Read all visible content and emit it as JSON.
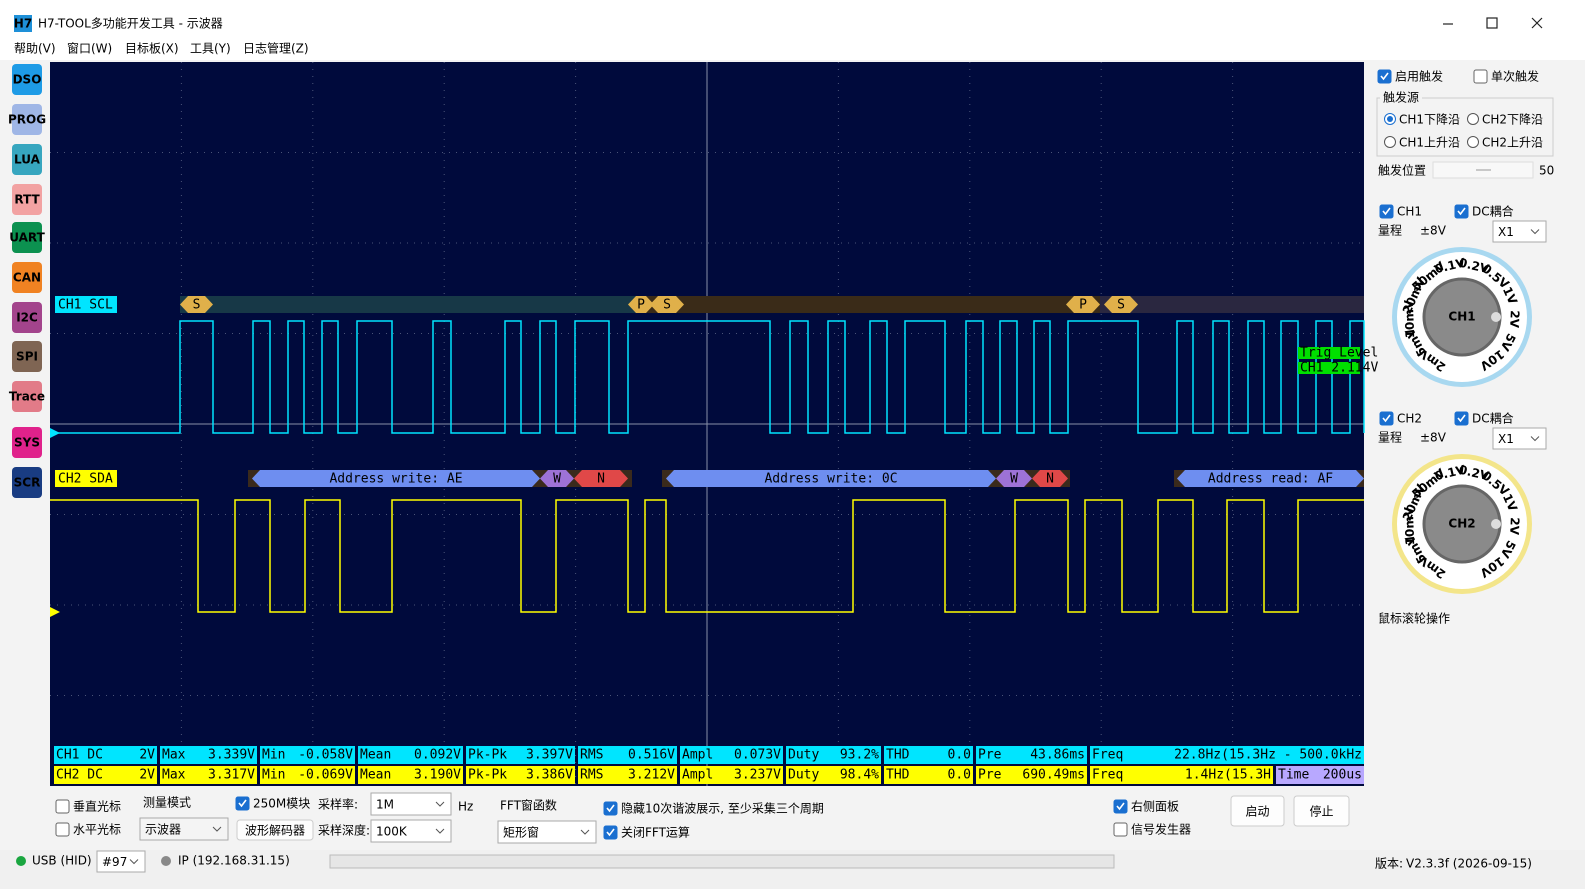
{
  "window": {
    "icon": "H7",
    "title": "H7-TOOL多功能开发工具 - 示波器"
  },
  "menu": [
    "帮助(V)",
    "窗口(W)",
    "目标板(X)",
    "工具(Y)",
    "日志管理(Z)"
  ],
  "sidebar": [
    "DSO",
    "PROG",
    "LUA",
    "RTT",
    "UART",
    "CAN",
    "I2C",
    "SPI",
    "Trace",
    "SYS",
    "SCR"
  ],
  "scope": {
    "ch1": {
      "label": "CH1 SCL",
      "decode": [
        "S",
        "P",
        "S",
        "P",
        "S"
      ]
    },
    "ch2": {
      "label": "CH2 SDA",
      "decode": [
        "Address write: AE",
        "W",
        "N",
        "Address write: 0C",
        "W",
        "N",
        "Address read: AF"
      ]
    },
    "trigger": {
      "title": "Trig Level",
      "value": "CH1 2.114V"
    },
    "measurements": [
      [
        [
          "CH1 DC",
          "2V"
        ],
        [
          "Max",
          "3.339V"
        ],
        [
          "Min",
          "-0.058V"
        ],
        [
          "Mean",
          "0.092V"
        ],
        [
          "Pk-Pk",
          "3.397V"
        ],
        [
          "RMS",
          "0.516V"
        ],
        [
          "Ampl",
          "0.073V"
        ],
        [
          "Duty",
          "93.2%"
        ],
        [
          "THD",
          "0.0"
        ],
        [
          "Pre",
          "43.86ms"
        ],
        [
          "Freq",
          "22.8Hz(15.3Hz - 500.0kHz"
        ]
      ],
      [
        [
          "CH2 DC",
          "2V"
        ],
        [
          "Max",
          "3.317V"
        ],
        [
          "Min",
          "-0.069V"
        ],
        [
          "Mean",
          "3.190V"
        ],
        [
          "Pk-Pk",
          "3.386V"
        ],
        [
          "RMS",
          "3.212V"
        ],
        [
          "Ampl",
          "3.237V"
        ],
        [
          "Duty",
          "98.4%"
        ],
        [
          "THD",
          "0.0"
        ],
        [
          "Pre",
          "690.49ms"
        ],
        [
          "Freq",
          "1.4Hz(15.3H"
        ],
        [
          "Time",
          "200us"
        ]
      ]
    ]
  },
  "controls": {
    "vertical_cursor": {
      "label": "垂直光标",
      "checked": false
    },
    "horizontal_cursor": {
      "label": "水平光标",
      "checked": false
    },
    "measure_mode_label": "测量模式",
    "measure_mode": "示波器",
    "module_250m": {
      "label": "250M模块",
      "checked": true
    },
    "decoder_button": "波形解码器",
    "sample_rate_label": "采样率:",
    "sample_rate": "1M",
    "sample_rate_unit": "Hz",
    "sample_depth_label": "采样深度:",
    "sample_depth": "100K",
    "fft_window_label": "FFT窗函数",
    "fft_window": "矩形窗",
    "hide_harmonics": {
      "label": "隐藏10次谐波展示, 至少采集三个周期",
      "checked": true
    },
    "disable_fft": {
      "label": "关闭FFT运算",
      "checked": true
    },
    "right_panel": {
      "label": "右侧面板",
      "checked": true
    },
    "signal_gen": {
      "label": "信号发生器",
      "checked": false
    },
    "start": "启动",
    "stop": "停止"
  },
  "status": {
    "usb": "USB (HID)",
    "device": "#97",
    "ip": "IP (192.168.31.15)",
    "version_label": "版本:",
    "version": "V2.3.3f (2026-09-15)"
  },
  "right_panel": {
    "enable_trigger": {
      "label": "启用触发",
      "checked": true
    },
    "single_trigger": {
      "label": "单次触发",
      "checked": false
    },
    "trigger_source": {
      "title": "触发源",
      "options": [
        {
          "label": "CH1下降沿",
          "checked": true
        },
        {
          "label": "CH2下降沿",
          "checked": false
        },
        {
          "label": "CH1上升沿",
          "checked": false
        },
        {
          "label": "CH2上升沿",
          "checked": false
        }
      ]
    },
    "trigger_position_label": "触发位置",
    "trigger_position": 50,
    "ch1": {
      "enable": {
        "label": "CH1",
        "checked": true
      },
      "dc": {
        "label": "DC耦合",
        "checked": true
      },
      "range_label": "量程",
      "range": "±8V",
      "probe": "X1",
      "knob": "CH1",
      "scale": [
        "2mV",
        "5mV",
        "10mV",
        "20mV",
        "50mV",
        "0.1V",
        "0.2V",
        "0.5V",
        "1V",
        "2V",
        "5V",
        "10V"
      ]
    },
    "ch2": {
      "enable": {
        "label": "CH2",
        "checked": true
      },
      "dc": {
        "label": "DC耦合",
        "checked": true
      },
      "range_label": "量程",
      "range": "±8V",
      "probe": "X1",
      "knob": "CH2",
      "scale": [
        "2mV",
        "5mV",
        "10mV",
        "20mV",
        "50mV",
        "0.1V",
        "0.2V",
        "0.5V",
        "1V",
        "2V",
        "5V",
        "10V"
      ]
    },
    "hint": "鼠标滚轮操作"
  }
}
